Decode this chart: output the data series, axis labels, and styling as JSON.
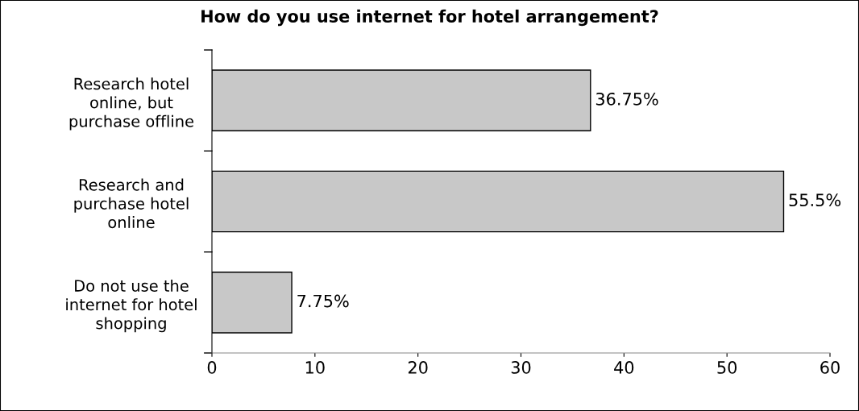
{
  "chart_data": {
    "type": "bar",
    "orientation": "horizontal",
    "title": "How do you use internet for hotel arrangement?",
    "categories": [
      "Research hotel\nonline, but\npurchase offline",
      "Research and\npurchase hotel\nonline",
      "Do not use the\ninternet for hotel\nshopping"
    ],
    "values": [
      36.75,
      55.5,
      7.75
    ],
    "value_labels": [
      "36.75%",
      "55.5%",
      "7.75%"
    ],
    "color": "#c8c8c8",
    "xlim": [
      0,
      60
    ],
    "xticks": [
      0,
      10,
      20,
      30,
      40,
      50,
      60
    ],
    "grid": false,
    "legend": false
  }
}
